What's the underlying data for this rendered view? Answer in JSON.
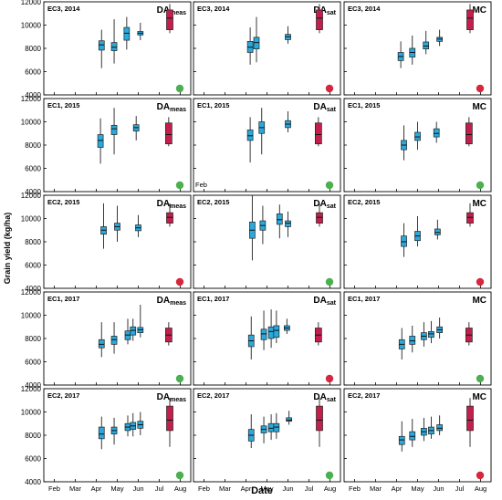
{
  "figure": {
    "ylabel": "Grain yield (kg/ha)",
    "xlabel": "Date"
  },
  "colors": {
    "box_blue": "#29a9dc",
    "box_red": "#c41e4c",
    "dot_green": "#4caf50",
    "dot_red": "#d7263d",
    "frame": "#000000"
  },
  "chart_data": {
    "type": "box",
    "shared": {
      "x_months": [
        "Feb",
        "Mar",
        "Apr",
        "May",
        "Jun",
        "Jul",
        "Aug"
      ],
      "ylim": [
        4000,
        12000
      ],
      "yticks": [
        4000,
        6000,
        8000,
        10000,
        12000
      ]
    },
    "panels": [
      {
        "exp": "EC3, 2014",
        "method": "DA",
        "sub": "meas",
        "row": 0,
        "col": 0,
        "xticks": false,
        "indicator": "green",
        "boxes": [
          {
            "x": 3.25,
            "q": [
              6300,
              7850,
              8300,
              8650,
              9600
            ],
            "fill": "blue"
          },
          {
            "x": 3.85,
            "q": [
              6700,
              7800,
              8100,
              8500,
              10500
            ],
            "fill": "blue"
          },
          {
            "x": 4.45,
            "q": [
              7900,
              8700,
              9300,
              9800,
              10700
            ],
            "fill": "blue"
          },
          {
            "x": 5.1,
            "q": [
              8700,
              9150,
              9300,
              9450,
              10200
            ],
            "fill": "blue"
          },
          {
            "x": 6.5,
            "q": [
              9300,
              9600,
              10600,
              11300,
              11800
            ],
            "fill": "red"
          }
        ]
      },
      {
        "exp": "EC3, 2014",
        "method": "DA",
        "sub": "sat",
        "row": 0,
        "col": 1,
        "xticks": false,
        "indicator": "red",
        "boxes": [
          {
            "x": 3.2,
            "q": [
              6600,
              7650,
              8100,
              8600,
              9800
            ],
            "fill": "blue"
          },
          {
            "x": 3.5,
            "q": [
              6800,
              7950,
              8500,
              8950,
              10700
            ],
            "fill": "blue"
          },
          {
            "x": 5.0,
            "q": [
              8400,
              8750,
              9000,
              9200,
              9900
            ],
            "fill": "blue"
          },
          {
            "x": 6.5,
            "q": [
              9300,
              9600,
              10600,
              11300,
              11800
            ],
            "fill": "red"
          }
        ]
      },
      {
        "exp": "EC3, 2014",
        "method": "MC",
        "sub": "",
        "row": 0,
        "col": 2,
        "xticks": false,
        "indicator": "red",
        "boxes": [
          {
            "x": 3.2,
            "q": [
              6300,
              6950,
              7300,
              7650,
              8600
            ],
            "fill": "blue"
          },
          {
            "x": 3.75,
            "q": [
              6600,
              7250,
              7650,
              8000,
              9100
            ],
            "fill": "blue"
          },
          {
            "x": 4.4,
            "q": [
              7500,
              7950,
              8200,
              8550,
              9500
            ],
            "fill": "blue"
          },
          {
            "x": 5.05,
            "q": [
              8200,
              8600,
              8800,
              8950,
              9600
            ],
            "fill": "blue"
          },
          {
            "x": 6.5,
            "q": [
              9300,
              9600,
              10600,
              11300,
              11800
            ],
            "fill": "red"
          }
        ]
      },
      {
        "exp": "EC1, 2015",
        "method": "DA",
        "sub": "meas",
        "row": 1,
        "col": 0,
        "xticks": false,
        "indicator": "green",
        "boxes": [
          {
            "x": 3.2,
            "q": [
              6400,
              7800,
              8400,
              8900,
              10300
            ],
            "fill": "blue"
          },
          {
            "x": 3.85,
            "q": [
              7200,
              8900,
              9400,
              9700,
              11200
            ],
            "fill": "blue"
          },
          {
            "x": 4.9,
            "q": [
              8400,
              9200,
              9500,
              9750,
              10500
            ],
            "fill": "blue"
          },
          {
            "x": 6.45,
            "q": [
              7900,
              8100,
              8900,
              9900,
              10400
            ],
            "fill": "red"
          }
        ]
      },
      {
        "exp": "EC1, 2015",
        "method": "DA",
        "sub": "sat",
        "row": 1,
        "col": 1,
        "xticks": "Feb",
        "indicator": "green",
        "boxes": [
          {
            "x": 3.2,
            "q": [
              6500,
              8400,
              8800,
              9300,
              10400
            ],
            "fill": "blue"
          },
          {
            "x": 3.75,
            "q": [
              7200,
              9000,
              9500,
              10000,
              11200
            ],
            "fill": "blue"
          },
          {
            "x": 5.0,
            "q": [
              9100,
              9500,
              9800,
              10100,
              10900
            ],
            "fill": "blue"
          },
          {
            "x": 6.45,
            "q": [
              7900,
              8100,
              8900,
              9900,
              10400
            ],
            "fill": "red"
          }
        ]
      },
      {
        "exp": "EC1, 2015",
        "method": "MC",
        "sub": "",
        "row": 1,
        "col": 2,
        "xticks": false,
        "indicator": "green",
        "boxes": [
          {
            "x": 3.35,
            "q": [
              6700,
              7600,
              8000,
              8400,
              9700
            ],
            "fill": "blue"
          },
          {
            "x": 4.0,
            "q": [
              7600,
              8400,
              8700,
              9100,
              10000
            ],
            "fill": "blue"
          },
          {
            "x": 4.9,
            "q": [
              8200,
              8700,
              9000,
              9400,
              10000
            ],
            "fill": "blue"
          },
          {
            "x": 6.45,
            "q": [
              7900,
              8100,
              8900,
              9900,
              10400
            ],
            "fill": "red"
          }
        ]
      },
      {
        "exp": "EC2, 2015",
        "method": "DA",
        "sub": "meas",
        "row": 2,
        "col": 0,
        "xticks": false,
        "indicator": "red",
        "boxes": [
          {
            "x": 3.35,
            "q": [
              7400,
              8650,
              9000,
              9300,
              11300
            ],
            "fill": "blue"
          },
          {
            "x": 4.0,
            "q": [
              8000,
              9000,
              9300,
              9600,
              11100
            ],
            "fill": "blue"
          },
          {
            "x": 5.0,
            "q": [
              8400,
              8950,
              9200,
              9450,
              10300
            ],
            "fill": "blue"
          },
          {
            "x": 6.5,
            "q": [
              9300,
              9600,
              10100,
              10500,
              11300
            ],
            "fill": "red"
          }
        ]
      },
      {
        "exp": "EC2, 2015",
        "method": "DA",
        "sub": "sat",
        "row": 2,
        "col": 1,
        "xticks": false,
        "indicator": "green",
        "boxes": [
          {
            "x": 3.3,
            "q": [
              6400,
              8300,
              9000,
              9700,
              12200
            ],
            "fill": "blue"
          },
          {
            "x": 3.8,
            "q": [
              7800,
              9000,
              9400,
              9800,
              11100
            ],
            "fill": "blue"
          },
          {
            "x": 4.6,
            "q": [
              8300,
              9500,
              9900,
              10400,
              11200
            ],
            "fill": "blue"
          },
          {
            "x": 5.0,
            "q": [
              8400,
              9300,
              9600,
              9800,
              10600
            ],
            "fill": "blue"
          },
          {
            "x": 6.5,
            "q": [
              9300,
              9600,
              10100,
              10500,
              11300
            ],
            "fill": "red"
          }
        ]
      },
      {
        "exp": "EC2, 2015",
        "method": "MC",
        "sub": "",
        "row": 2,
        "col": 2,
        "xticks": false,
        "indicator": "red",
        "boxes": [
          {
            "x": 3.35,
            "q": [
              6700,
              7600,
              8000,
              8500,
              9600
            ],
            "fill": "blue"
          },
          {
            "x": 4.0,
            "q": [
              7600,
              8100,
              8500,
              8900,
              10200
            ],
            "fill": "blue"
          },
          {
            "x": 4.95,
            "q": [
              8200,
              8600,
              8800,
              9100,
              9900
            ],
            "fill": "blue"
          },
          {
            "x": 6.5,
            "q": [
              9300,
              9600,
              10100,
              10500,
              11300
            ],
            "fill": "red"
          }
        ]
      },
      {
        "exp": "EC1, 2017",
        "method": "DA",
        "sub": "meas",
        "row": 3,
        "col": 0,
        "xticks": false,
        "indicator": "green",
        "boxes": [
          {
            "x": 3.25,
            "q": [
              6400,
              7200,
              7500,
              7900,
              9400
            ],
            "fill": "blue"
          },
          {
            "x": 3.85,
            "q": [
              6700,
              7500,
              7900,
              8200,
              9400
            ],
            "fill": "blue"
          },
          {
            "x": 4.5,
            "q": [
              7500,
              7900,
              8300,
              8650,
              9700
            ],
            "fill": "blue"
          },
          {
            "x": 4.75,
            "q": [
              7800,
              8300,
              8700,
              9000,
              9700
            ],
            "fill": "blue"
          },
          {
            "x": 5.1,
            "q": [
              8100,
              8500,
              8750,
              8950,
              10900
            ],
            "fill": "blue"
          },
          {
            "x": 6.45,
            "q": [
              7400,
              7700,
              8300,
              8900,
              9400
            ],
            "fill": "red"
          }
        ]
      },
      {
        "exp": "EC1, 2017",
        "method": "DA",
        "sub": "sat",
        "row": 3,
        "col": 1,
        "xticks": false,
        "indicator": "red",
        "boxes": [
          {
            "x": 3.25,
            "q": [
              6200,
              7300,
              7800,
              8300,
              9900
            ],
            "fill": "blue"
          },
          {
            "x": 3.85,
            "q": [
              7000,
              7900,
              8400,
              8800,
              10400
            ],
            "fill": "blue"
          },
          {
            "x": 4.2,
            "q": [
              7200,
              8000,
              8600,
              9000,
              10500
            ],
            "fill": "blue"
          },
          {
            "x": 4.45,
            "q": [
              7600,
              8100,
              8700,
              9100,
              10400
            ],
            "fill": "blue"
          },
          {
            "x": 4.95,
            "q": [
              8400,
              8700,
              8900,
              9100,
              9700
            ],
            "fill": "blue"
          },
          {
            "x": 6.45,
            "q": [
              7400,
              7700,
              8300,
              8900,
              9400
            ],
            "fill": "red"
          }
        ]
      },
      {
        "exp": "EC1, 2017",
        "method": "MC",
        "sub": "",
        "row": 3,
        "col": 2,
        "xticks": false,
        "indicator": "green",
        "boxes": [
          {
            "x": 3.25,
            "q": [
              6200,
              7100,
              7500,
              7900,
              8900
            ],
            "fill": "blue"
          },
          {
            "x": 3.75,
            "q": [
              6800,
              7500,
              7800,
              8200,
              9100
            ],
            "fill": "blue"
          },
          {
            "x": 4.3,
            "q": [
              7300,
              7900,
              8200,
              8500,
              9400
            ],
            "fill": "blue"
          },
          {
            "x": 4.65,
            "q": [
              7600,
              8100,
              8400,
              8600,
              9500
            ],
            "fill": "blue"
          },
          {
            "x": 5.05,
            "q": [
              8000,
              8500,
              8750,
              9000,
              9800
            ],
            "fill": "blue"
          },
          {
            "x": 6.45,
            "q": [
              7400,
              7700,
              8300,
              8900,
              9400
            ],
            "fill": "red"
          }
        ]
      },
      {
        "exp": "EC2, 2017",
        "method": "DA",
        "sub": "meas",
        "row": 4,
        "col": 0,
        "xticks": "all",
        "indicator": "green",
        "boxes": [
          {
            "x": 3.25,
            "q": [
              6800,
              7700,
              8100,
              8700,
              9600
            ],
            "fill": "blue"
          },
          {
            "x": 3.85,
            "q": [
              7200,
              8100,
              8400,
              8700,
              9500
            ],
            "fill": "blue"
          },
          {
            "x": 4.5,
            "q": [
              7900,
              8400,
              8700,
              9000,
              9700
            ],
            "fill": "blue"
          },
          {
            "x": 4.75,
            "q": [
              7900,
              8500,
              8800,
              9100,
              9900
            ],
            "fill": "blue"
          },
          {
            "x": 5.1,
            "q": [
              8000,
              8600,
              8900,
              9200,
              10000
            ],
            "fill": "blue"
          },
          {
            "x": 6.5,
            "q": [
              7000,
              8400,
              9300,
              10500,
              11200
            ],
            "fill": "red"
          }
        ]
      },
      {
        "exp": "EC2, 2017",
        "method": "DA",
        "sub": "sat",
        "row": 4,
        "col": 1,
        "xticks": "all",
        "indicator": "green",
        "boxes": [
          {
            "x": 3.25,
            "q": [
              6900,
              7500,
              8000,
              8500,
              9800
            ],
            "fill": "blue"
          },
          {
            "x": 3.85,
            "q": [
              7300,
              8200,
              8500,
              8800,
              9600
            ],
            "fill": "blue"
          },
          {
            "x": 4.2,
            "q": [
              7600,
              8300,
              8600,
              9000,
              9800
            ],
            "fill": "blue"
          },
          {
            "x": 4.45,
            "q": [
              7700,
              8300,
              8700,
              9000,
              9900
            ],
            "fill": "blue"
          },
          {
            "x": 5.05,
            "q": [
              8900,
              9200,
              9300,
              9500,
              10100
            ],
            "fill": "blue"
          },
          {
            "x": 6.5,
            "q": [
              7000,
              8400,
              9300,
              10500,
              11200
            ],
            "fill": "red"
          }
        ]
      },
      {
        "exp": "EC2, 2017",
        "method": "MC",
        "sub": "",
        "row": 4,
        "col": 2,
        "xticks": "all",
        "indicator": "red",
        "boxes": [
          {
            "x": 3.25,
            "q": [
              6600,
              7200,
              7600,
              7900,
              9200
            ],
            "fill": "blue"
          },
          {
            "x": 3.75,
            "q": [
              7000,
              7600,
              7900,
              8300,
              9400
            ],
            "fill": "blue"
          },
          {
            "x": 4.3,
            "q": [
              7500,
              8000,
              8300,
              8600,
              9500
            ],
            "fill": "blue"
          },
          {
            "x": 4.65,
            "q": [
              7700,
              8100,
              8400,
              8700,
              9600
            ],
            "fill": "blue"
          },
          {
            "x": 5.05,
            "q": [
              8000,
              8400,
              8600,
              8900,
              9700
            ],
            "fill": "blue"
          },
          {
            "x": 6.5,
            "q": [
              7000,
              8400,
              9300,
              10500,
              11200
            ],
            "fill": "red"
          }
        ]
      }
    ]
  }
}
